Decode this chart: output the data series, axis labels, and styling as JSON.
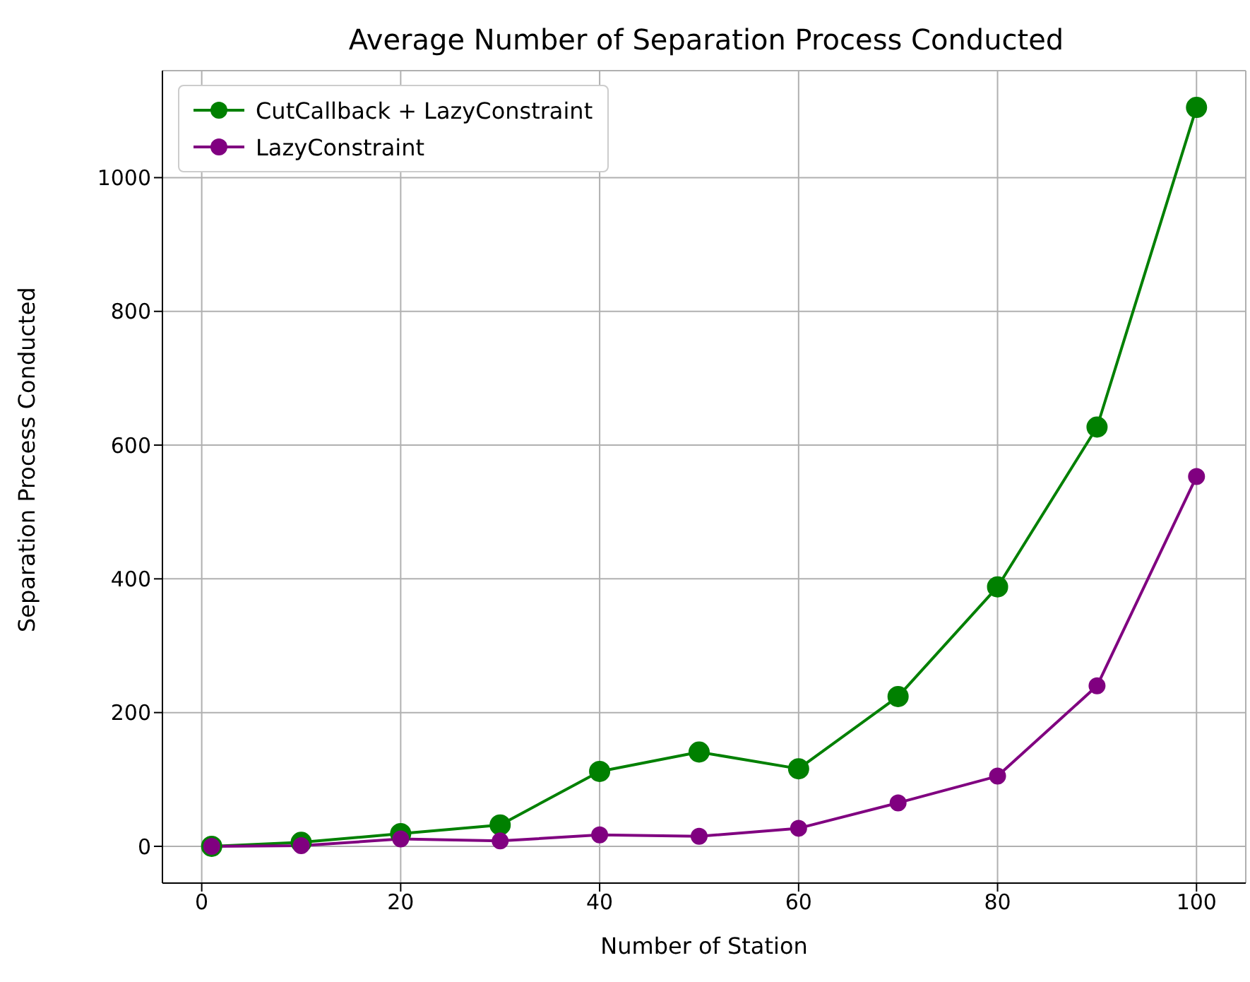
{
  "chart_data": {
    "type": "line",
    "title": "Average Number of Separation Process Conducted",
    "xlabel": "Number of Station",
    "ylabel": "Separation Process Conducted",
    "x": [
      1,
      10,
      20,
      30,
      40,
      50,
      60,
      70,
      80,
      90,
      100
    ],
    "series": [
      {
        "name": "CutCallback + LazyConstraint",
        "color": "#008000",
        "values": [
          0,
          6,
          19,
          32,
          112,
          141,
          116,
          224,
          388,
          627,
          1105
        ]
      },
      {
        "name": "LazyConstraint",
        "color": "#800080",
        "values": [
          0,
          1,
          11,
          8,
          17,
          15,
          27,
          65,
          105,
          240,
          553
        ]
      }
    ],
    "xlim": [
      -3.95,
      104.95
    ],
    "xticks": [
      0,
      20,
      40,
      60,
      80,
      100
    ],
    "ylim": [
      -55,
      1160
    ],
    "yticks": [
      0,
      200,
      400,
      600,
      800,
      1000
    ],
    "grid": true,
    "legend": "top left",
    "marker": "circle",
    "line_style": "solid"
  }
}
